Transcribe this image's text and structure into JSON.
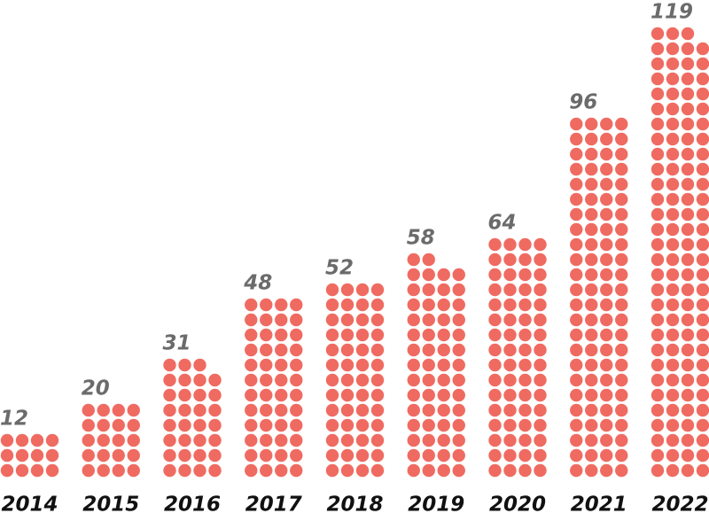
{
  "chart_data": {
    "type": "dot",
    "categories": [
      "2014",
      "2015",
      "2016",
      "2017",
      "2018",
      "2019",
      "2020",
      "2021",
      "2022"
    ],
    "values": [
      12,
      20,
      31,
      48,
      52,
      58,
      64,
      96,
      119
    ],
    "color": "#ef6b61",
    "dots_per_row": 4
  }
}
